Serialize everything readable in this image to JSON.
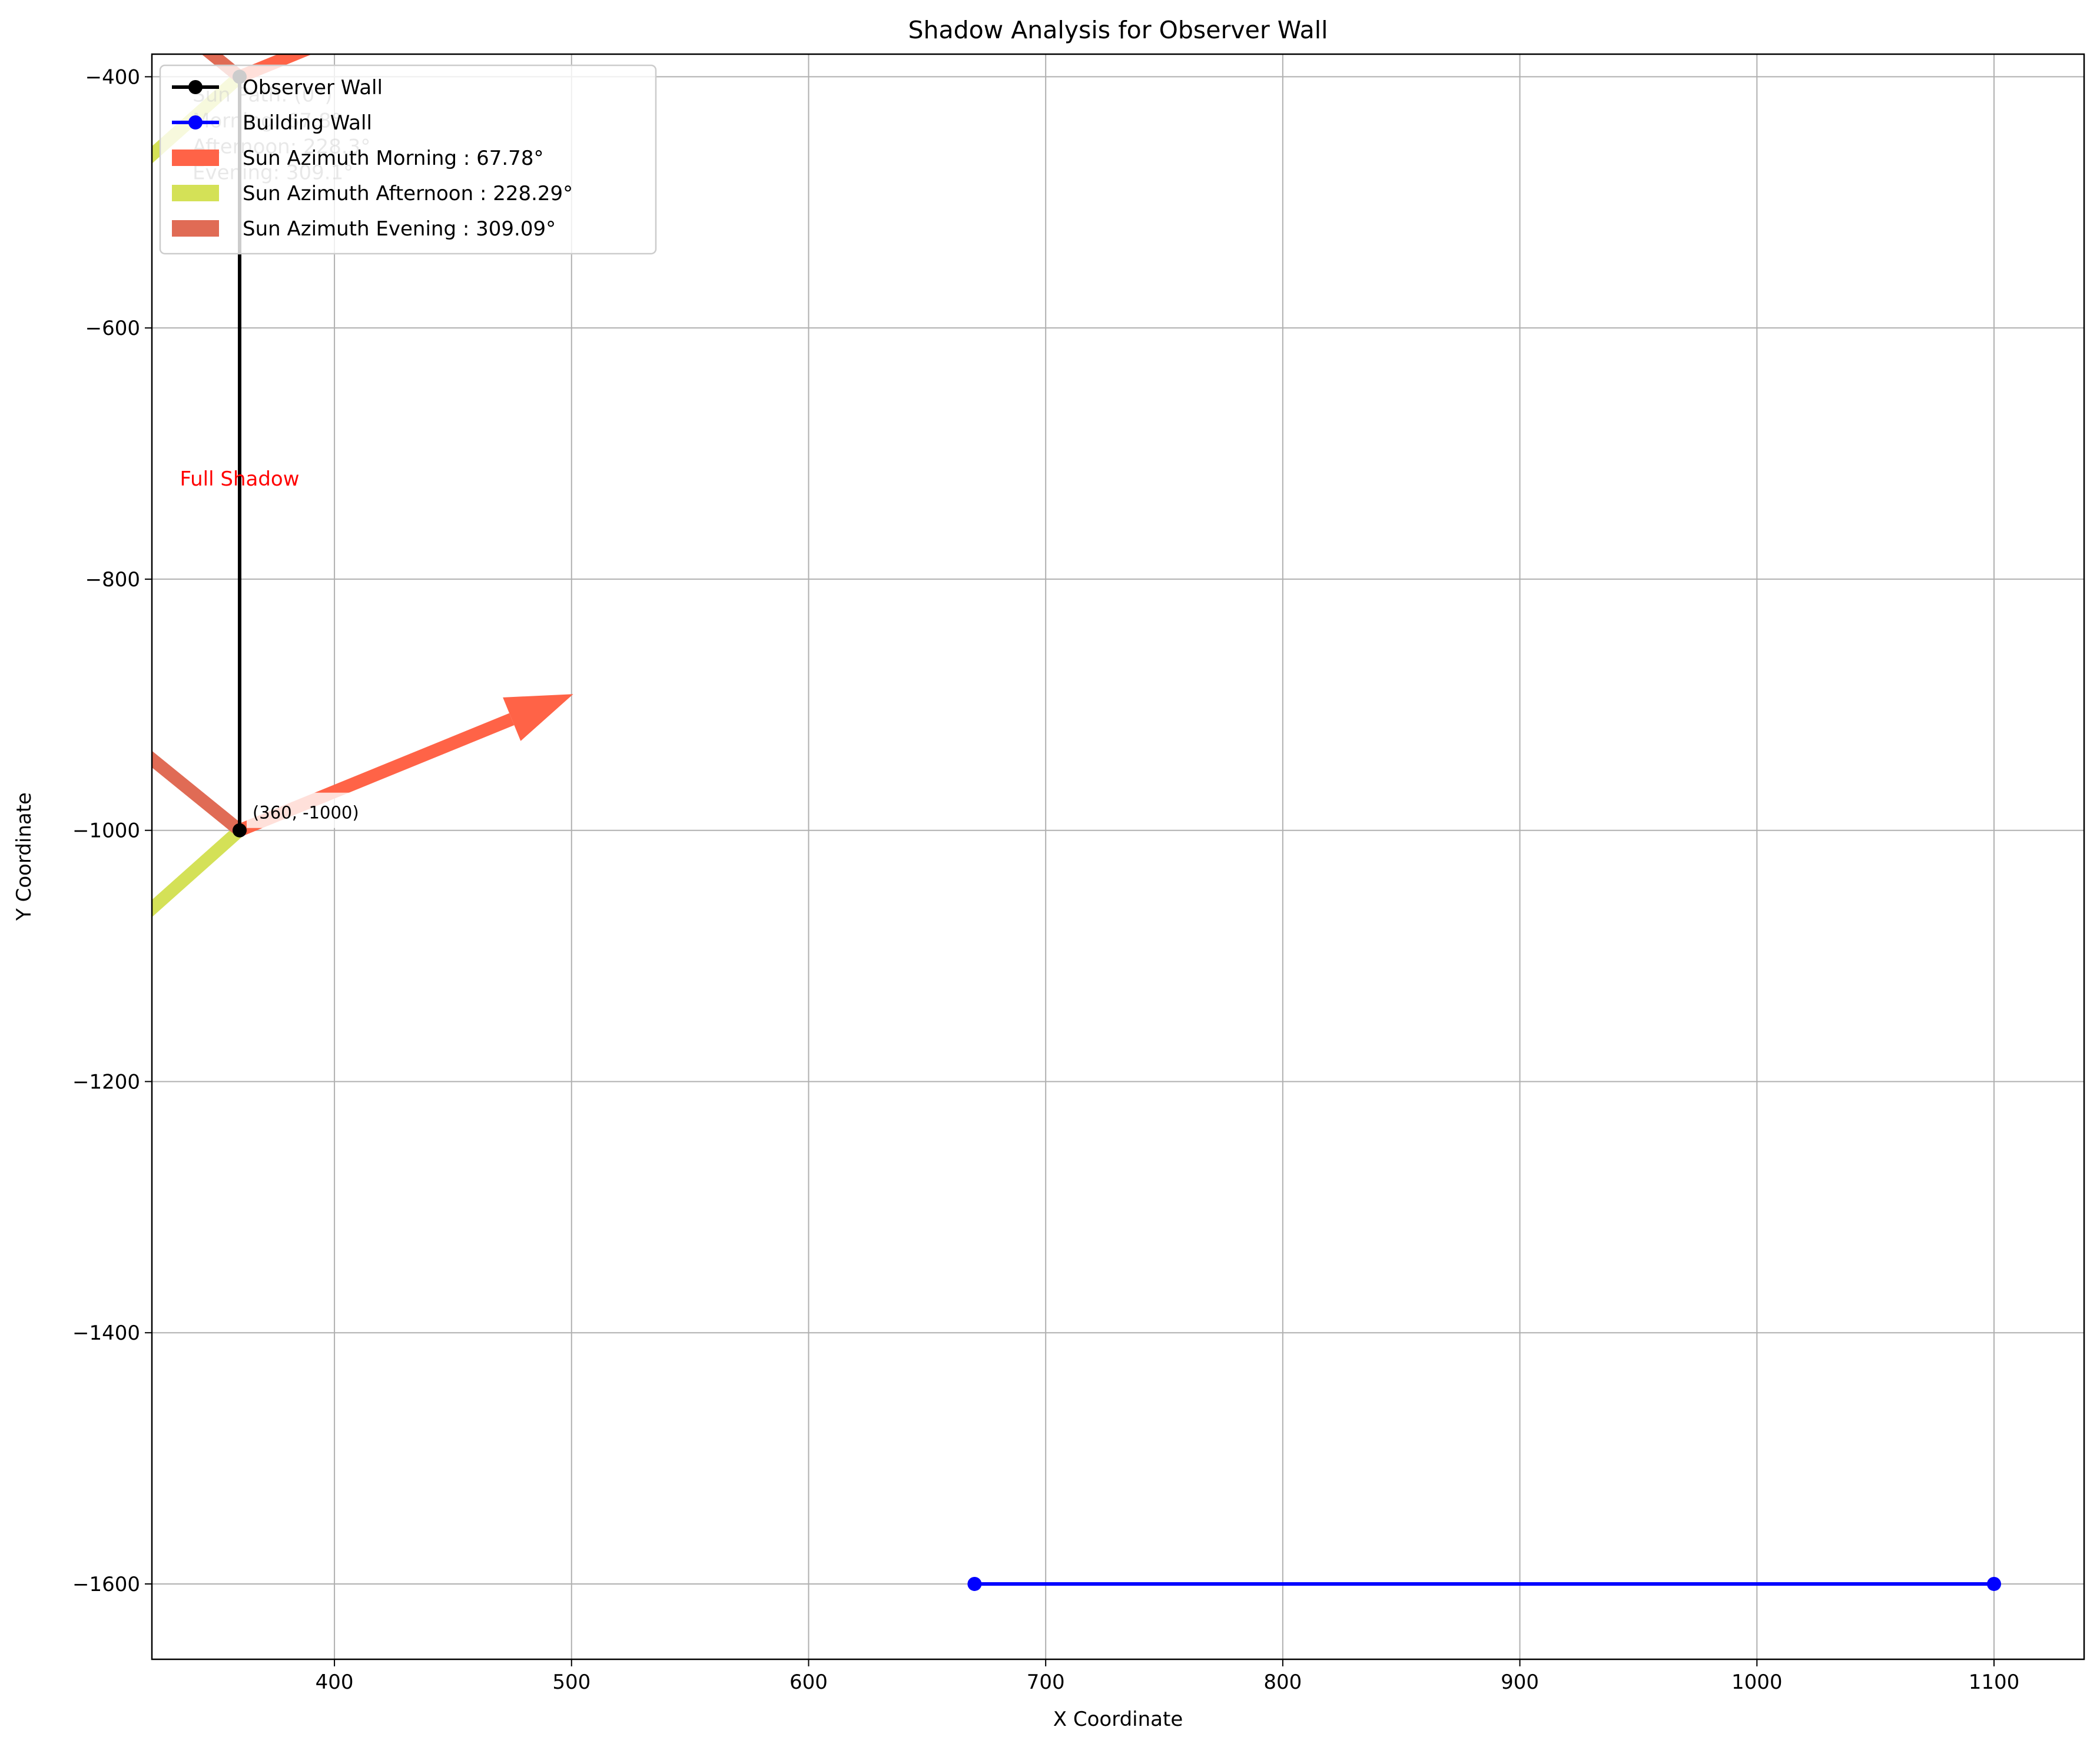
{
  "chart_data": {
    "type": "line",
    "title": "Shadow Analysis for Observer Wall",
    "xlabel": "X Coordinate",
    "ylabel": "Y Coordinate",
    "xlim": [
      323,
      1138
    ],
    "ylim": [
      -1660,
      -382
    ],
    "xticks": [
      400,
      500,
      600,
      700,
      800,
      900,
      1000,
      1100
    ],
    "yticks": [
      -400,
      -600,
      -800,
      -1000,
      -1200,
      -1400,
      -1600
    ],
    "xtick_labels": [
      "400",
      "500",
      "600",
      "700",
      "800",
      "900",
      "1000",
      "1100"
    ],
    "ytick_labels": [
      "−400",
      "−600",
      "−800",
      "−1000",
      "−1200",
      "−1400",
      "−1600"
    ],
    "grid": true,
    "legend_position": "top-left",
    "series": [
      {
        "name": "Observer Wall",
        "color": "#000000",
        "points": [
          [
            360,
            -1000
          ],
          [
            360,
            -400
          ]
        ]
      },
      {
        "name": "Building Wall",
        "color": "#0000ff",
        "points": [
          [
            670,
            -1600
          ],
          [
            1100,
            -1600
          ]
        ]
      }
    ],
    "sun_arrows": [
      {
        "name": "Sun Azimuth Morning : 67.78°",
        "azimuth": 67.78,
        "color": "#ff6347"
      },
      {
        "name": "Sun Azimuth Afternoon : 228.29°",
        "azimuth": 228.29,
        "color": "#d4e157"
      },
      {
        "name": "Sun Azimuth Evening : 309.09°",
        "azimuth": 309.09,
        "color": "#e06b55"
      }
    ],
    "annotations": {
      "point_label": {
        "text": "(360, -1000)",
        "x": 360,
        "y": -1000
      },
      "shadow_label": {
        "text": "Full Shadow",
        "x": 360,
        "y": -720,
        "color": "#ff0000"
      },
      "sun_path": [
        "Sun Path: (0°)",
        "Morning: 67.8°",
        "Afternoon: 228.3°",
        "Evening: 309.1°"
      ]
    }
  }
}
